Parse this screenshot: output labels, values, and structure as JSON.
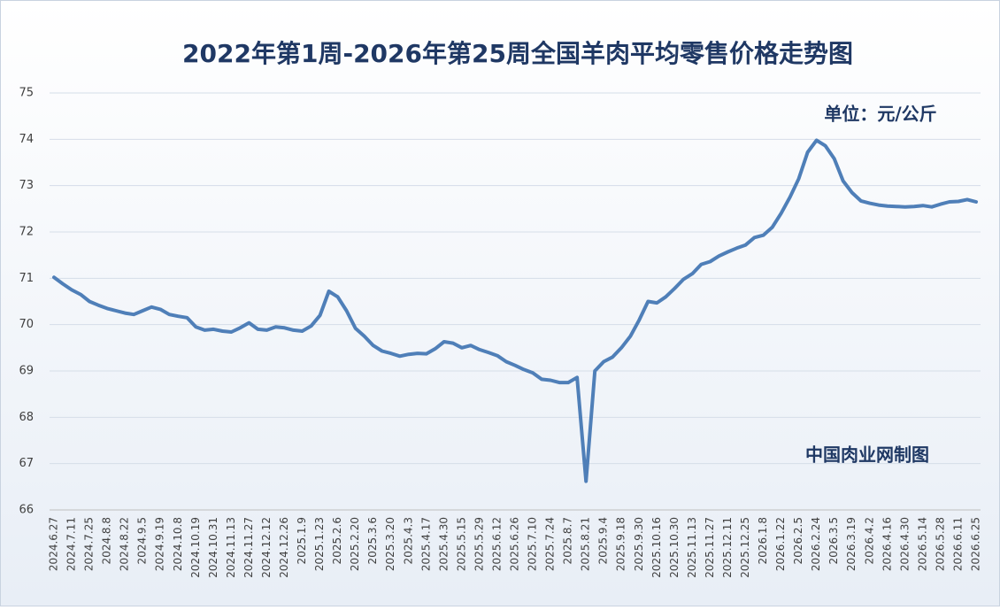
{
  "chart_data": {
    "type": "line",
    "title": "2022年第1周-2026年第25周全国羊肉平均零售价格走势图",
    "unit_label": "单位：元/公斤",
    "source": "中国肉业网制图",
    "categories": [
      "2024.6.27",
      null,
      "2024.7.11",
      null,
      "2024.7.25",
      null,
      "2024.8.8",
      null,
      "2024.8.22",
      null,
      "2024.9.5",
      null,
      "2024.9.19",
      null,
      "2024.10.8",
      null,
      "2024.10.19",
      null,
      "2024.10.31",
      null,
      "2024.11.13",
      null,
      "2024.11.27",
      null,
      "2024.12.12",
      null,
      "2024.12.26",
      null,
      "2025.1.9",
      null,
      "2025.1.23",
      null,
      "2025.2.6",
      null,
      "2025.2.20",
      null,
      "2025.3.6",
      null,
      "2025.3.20",
      null,
      "2025.4.3",
      null,
      "2025.4.17",
      null,
      "2025.4.30",
      null,
      "2025.5.15",
      null,
      "2025.5.29",
      null,
      "2025.6.12",
      null,
      "2025.6.26",
      null,
      "2025.7.10",
      null,
      "2025.7.24",
      null,
      "2025.8.7",
      null,
      "2025.8.21",
      null,
      "2025.9.4",
      null,
      "2025.9.18",
      null,
      "2025.9.30",
      null,
      "2025.10.16",
      null,
      "2025.10.30",
      null,
      "2025.11.13",
      null,
      "2025.11.27",
      null,
      "2025.12.11",
      null,
      "2025.12.25",
      null,
      "2026.1.8",
      null,
      "2026.1.22",
      null,
      "2026.2.5",
      null,
      "2026.2.24",
      null,
      "2026.3.5",
      null,
      "2026.3.19",
      null,
      "2026.4.2",
      null,
      "2026.4.16",
      null,
      "2026.4.30",
      null,
      "2026.5.14",
      null,
      "2026.5.28",
      null,
      "2026.6.11",
      null,
      "2026.6.25"
    ],
    "series": [
      {
        "name": "全国羊肉平均零售价格",
        "color": "#4f7fb8",
        "values": [
          71.02,
          70.88,
          70.75,
          70.65,
          70.5,
          70.42,
          70.35,
          70.3,
          70.25,
          70.22,
          70.3,
          70.38,
          70.33,
          70.22,
          70.18,
          70.15,
          69.95,
          69.88,
          69.9,
          69.86,
          69.84,
          69.93,
          70.04,
          69.9,
          69.88,
          69.95,
          69.93,
          69.88,
          69.86,
          69.97,
          70.2,
          70.72,
          70.6,
          70.3,
          69.92,
          69.75,
          69.55,
          69.43,
          69.38,
          69.32,
          69.36,
          69.38,
          69.37,
          69.48,
          69.63,
          69.6,
          69.5,
          69.55,
          69.46,
          69.4,
          69.33,
          69.2,
          69.12,
          69.03,
          68.96,
          68.82,
          68.8,
          68.75,
          68.75,
          68.86,
          66.62,
          69.0,
          69.2,
          69.3,
          69.5,
          69.75,
          70.1,
          70.5,
          70.47,
          70.6,
          70.78,
          70.98,
          71.1,
          71.3,
          71.36,
          71.48,
          71.57,
          71.65,
          71.72,
          71.88,
          71.93,
          72.1,
          72.4,
          72.75,
          73.15,
          73.72,
          73.98,
          73.86,
          73.58,
          73.1,
          72.85,
          72.67,
          72.62,
          72.58,
          72.56,
          72.55,
          72.54,
          72.55,
          72.57,
          72.54,
          72.6,
          72.65,
          72.66,
          72.7,
          72.65
        ]
      }
    ],
    "ylim": [
      66,
      75
    ],
    "yticks": [
      66,
      67,
      68,
      69,
      70,
      71,
      72,
      73,
      74,
      75
    ],
    "grid": true
  }
}
